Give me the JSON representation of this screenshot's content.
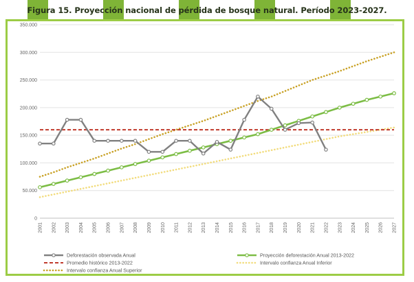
{
  "title": "Figura 15. Proyección nacional de pérdida de bosque natural. Período 2023-2027.",
  "colors": {
    "frame": "#9ccc45",
    "observed": "#808080",
    "projection": "#7cbd45",
    "historic": "#c0392b",
    "upper": "#c9a227",
    "lower": "#f2dc7d"
  },
  "chart_data": {
    "type": "line",
    "title": "Figura 15. Proyección nacional de pérdida de bosque natural. Período 2023-2027.",
    "xlabel": "",
    "ylabel": "",
    "ylim": [
      0,
      350000
    ],
    "yticks": [
      "0",
      "50.000",
      "100.000",
      "150.000",
      "200.000",
      "250.000",
      "300.000",
      "350.000"
    ],
    "ytick_values": [
      0,
      50000,
      100000,
      150000,
      200000,
      250000,
      300000,
      350000
    ],
    "x": [
      "2001",
      "2002",
      "2003",
      "2004",
      "2005",
      "2006",
      "2007",
      "2008",
      "2009",
      "2010",
      "2011",
      "2012",
      "2013",
      "2014",
      "2015",
      "2016",
      "2017",
      "2018",
      "2019",
      "2020",
      "2021",
      "2022",
      "2023",
      "2024",
      "2025",
      "2026",
      "2027"
    ],
    "grid": true,
    "legend_position": "bottom",
    "series": [
      {
        "name": "Deforestación observada Anual",
        "style": "solid-markers",
        "color": "#808080",
        "values": [
          135000,
          135000,
          178000,
          178000,
          140000,
          140000,
          140000,
          140000,
          120000,
          120000,
          140000,
          140000,
          117000,
          138000,
          124000,
          178000,
          220000,
          198000,
          160000,
          172000,
          173000,
          124000,
          null,
          null,
          null,
          null,
          null
        ]
      },
      {
        "name": "Proyección deforestación Anual 2013-2022",
        "style": "solid-markers",
        "color": "#7cbd45",
        "values": [
          56000,
          62000,
          68000,
          74000,
          80000,
          86000,
          92000,
          98000,
          104000,
          110000,
          116000,
          122000,
          128000,
          134000,
          140000,
          146000,
          152000,
          160000,
          168000,
          176000,
          184000,
          192000,
          200000,
          207000,
          214000,
          220000,
          226000
        ]
      },
      {
        "name": "Promedio histórico 2013-2022",
        "style": "dashed",
        "color": "#c0392b",
        "values": [
          160000,
          160000,
          160000,
          160000,
          160000,
          160000,
          160000,
          160000,
          160000,
          160000,
          160000,
          160000,
          160000,
          160000,
          160000,
          160000,
          160000,
          160000,
          160000,
          160000,
          160000,
          160000,
          160000,
          160000,
          160000,
          160000,
          160000
        ]
      },
      {
        "name": "Intervalo confianza Anual Inferior",
        "style": "dotted",
        "color": "#f2dc7d",
        "values": [
          38000,
          43000,
          48000,
          53000,
          58000,
          63000,
          68000,
          73000,
          78000,
          83000,
          88000,
          93000,
          98000,
          103000,
          108000,
          113000,
          118000,
          123000,
          128000,
          133000,
          138000,
          143000,
          148000,
          152000,
          156000,
          160000,
          164000
        ]
      },
      {
        "name": "Intervalo confianza Anual Superior",
        "style": "dotted",
        "color": "#c9a227",
        "values": [
          75000,
          83000,
          92000,
          100000,
          108000,
          117000,
          126000,
          134000,
          143000,
          152000,
          160000,
          168000,
          176000,
          185000,
          194000,
          203000,
          212000,
          220000,
          230000,
          240000,
          250000,
          258000,
          266000,
          275000,
          284000,
          292000,
          300000
        ]
      }
    ]
  }
}
